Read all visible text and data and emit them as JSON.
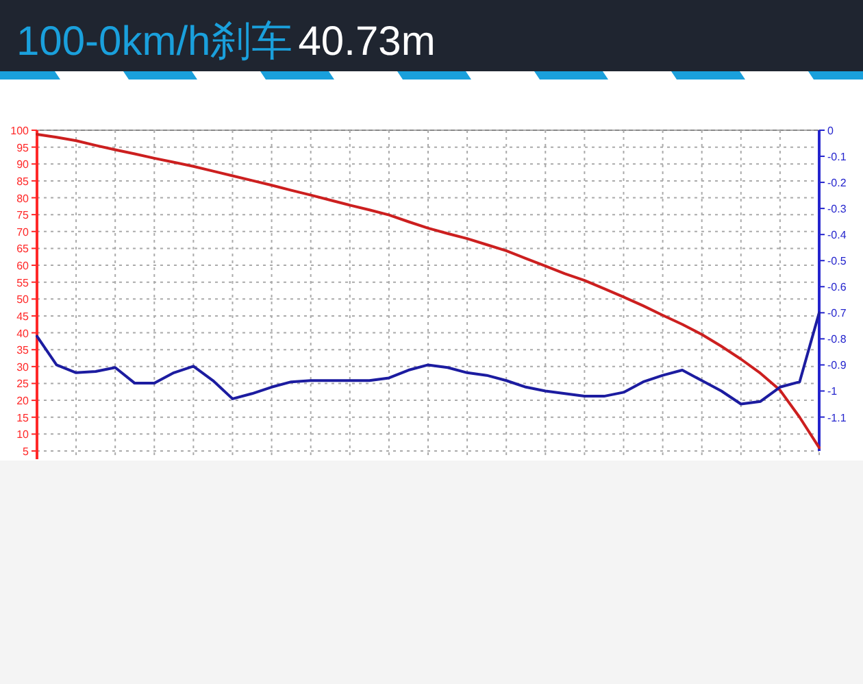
{
  "chart_data": {
    "type": "line",
    "title": "100-0km/h刹车",
    "subtitle": "40.73m",
    "categories": [
      null,
      null,
      null,
      null,
      null,
      null,
      null,
      null,
      null,
      null,
      null,
      null,
      null,
      null,
      null,
      null,
      null,
      null,
      null,
      null,
      null,
      null,
      null,
      null,
      null,
      null,
      null,
      null,
      null,
      null,
      null,
      null,
      null,
      null,
      null,
      null,
      null,
      null,
      null,
      null,
      null
    ],
    "ylim": [
      5,
      100
    ],
    "yticks": [
      5,
      10,
      15,
      20,
      25,
      30,
      35,
      40,
      45,
      50,
      55,
      60,
      65,
      70,
      75,
      80,
      85,
      90,
      95,
      100
    ],
    "y2lim": [
      -1.23,
      0
    ],
    "y2ticks": [
      0,
      -0.1,
      -0.2,
      -0.3,
      -0.4,
      -0.5,
      -0.6,
      -0.7,
      -0.8,
      -0.9,
      -1,
      -1.1
    ],
    "tick_labels": "y",
    "grid": true,
    "line_style": "solid",
    "series": [
      {
        "color": "#cc1f1f",
        "values": [
          98.8,
          97.9,
          96.9,
          95.5,
          94.2,
          93,
          91.7,
          90.5,
          89.3,
          87.9,
          86.5,
          85.1,
          83.7,
          82.2,
          80.8,
          79.3,
          77.8,
          76.4,
          74.9,
          72.9,
          71,
          69.4,
          67.9,
          66.1,
          64.3,
          62,
          59.8,
          57.5,
          55.5,
          53.1,
          50.6,
          48,
          45.2,
          42.5,
          39.5,
          36,
          32.2,
          28,
          23,
          15,
          6
        ]
      },
      {
        "color": "#1c1ca0",
        "axis": "y2",
        "values": [
          -0.79,
          -0.9,
          -0.93,
          -0.925,
          -0.91,
          -0.97,
          -0.97,
          -0.93,
          -0.905,
          -0.96,
          -1.03,
          -1.01,
          -0.985,
          -0.965,
          -0.96,
          -0.96,
          -0.96,
          -0.96,
          -0.95,
          -0.92,
          -0.9,
          -0.91,
          -0.93,
          -0.94,
          -0.96,
          -0.985,
          -1,
          -1.01,
          -1.02,
          -1.02,
          -1.005,
          -0.965,
          -0.94,
          -0.92,
          -0.96,
          -1,
          -1.05,
          -1.04,
          -0.985,
          -0.965,
          -0.7
        ]
      }
    ]
  }
}
